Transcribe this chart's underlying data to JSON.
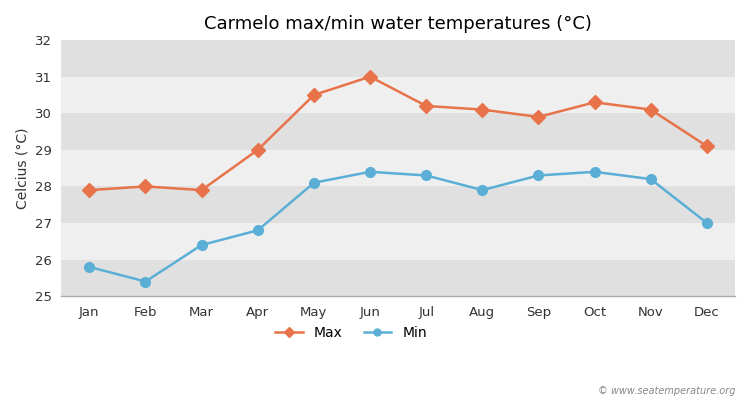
{
  "title": "Carmelo max/min water temperatures (°C)",
  "ylabel": "Celcius (°C)",
  "months": [
    "Jan",
    "Feb",
    "Mar",
    "Apr",
    "May",
    "Jun",
    "Jul",
    "Aug",
    "Sep",
    "Oct",
    "Nov",
    "Dec"
  ],
  "max_temps": [
    27.9,
    28.0,
    27.9,
    29.0,
    30.5,
    31.0,
    30.2,
    30.1,
    29.9,
    30.3,
    30.1,
    29.1
  ],
  "min_temps": [
    25.8,
    25.4,
    26.4,
    26.8,
    28.1,
    28.4,
    28.3,
    27.9,
    28.3,
    28.4,
    28.2,
    27.0
  ],
  "max_color": "#e8734a",
  "min_color": "#5bafd6",
  "fig_bg_color": "#ffffff",
  "band_light": "#efefef",
  "band_dark": "#e0e0e0",
  "ylim": [
    25,
    32
  ],
  "yticks": [
    25,
    26,
    27,
    28,
    29,
    30,
    31,
    32
  ],
  "legend_labels": [
    "Max",
    "Min"
  ],
  "watermark": "© www.seatemperature.org",
  "title_fontsize": 13,
  "label_fontsize": 10,
  "tick_fontsize": 9.5
}
